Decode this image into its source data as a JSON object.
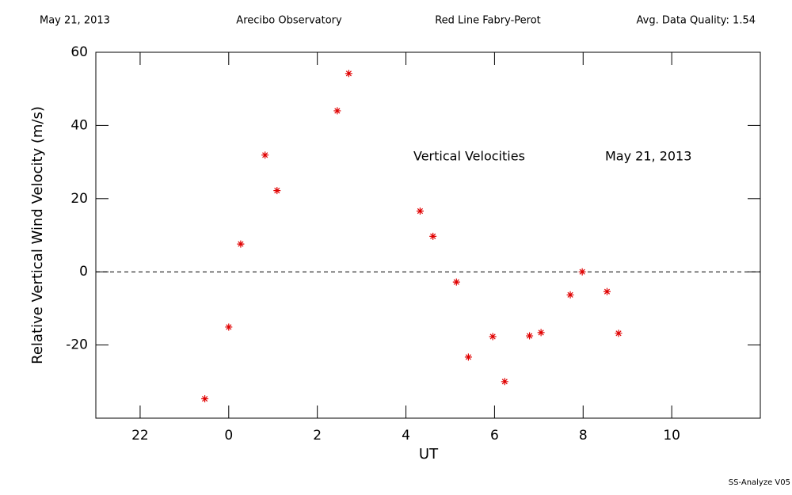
{
  "chart_data": {
    "type": "scatter",
    "header": [
      "May 21, 2013",
      "Arecibo Observatory",
      "Red Line Fabry-Perot",
      "Avg. Data Quality: 1.54"
    ],
    "annotations": [
      "Vertical Velocities",
      "May 21, 2013"
    ],
    "xlabel": "UT",
    "ylabel": "Relative Vertical Wind Velocity (m/s)",
    "footer": "SS-Analyze V05",
    "color": "#e00000",
    "reference_line": 0,
    "x": [
      -0.54,
      0.0,
      0.27,
      0.82,
      1.09,
      2.45,
      2.71,
      4.32,
      4.61,
      5.14,
      5.41,
      5.96,
      6.23,
      6.79,
      7.05,
      7.71,
      7.98,
      8.54,
      8.8
    ],
    "values": [
      -34.7,
      -15.1,
      7.6,
      31.9,
      22.2,
      44.0,
      54.2,
      16.6,
      9.7,
      -2.8,
      -23.3,
      -17.7,
      -30.0,
      -17.5,
      -16.6,
      -6.3,
      0,
      -5.4,
      -16.8
    ],
    "xlim": [
      -3,
      12
    ],
    "ylim": [
      -40,
      60
    ],
    "xticks": [
      {
        "value": -2,
        "label": "22"
      },
      0,
      2,
      4,
      6,
      8,
      10
    ],
    "yticks": [
      -20,
      0,
      20,
      40,
      60
    ]
  }
}
